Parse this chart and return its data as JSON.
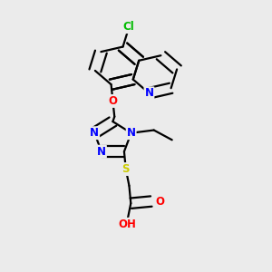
{
  "bg_color": "#ebebeb",
  "atom_colors": {
    "C": "#000000",
    "N": "#0000ff",
    "O": "#ff0000",
    "S": "#cccc00",
    "Cl": "#00bb00",
    "H": "#808080"
  },
  "figsize": [
    3.0,
    3.0
  ],
  "dpi": 100
}
